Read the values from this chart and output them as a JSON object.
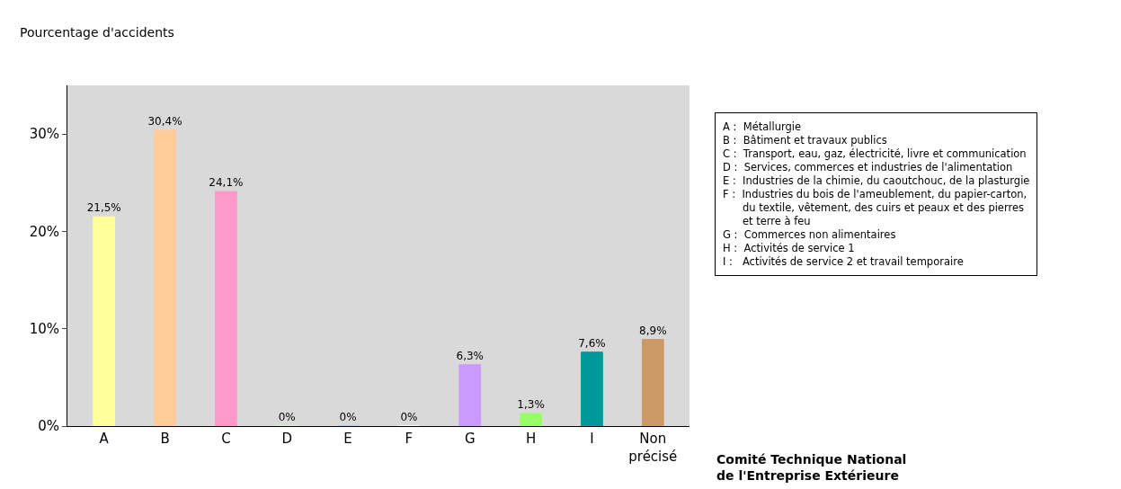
{
  "chart_data": {
    "type": "bar",
    "ylabel": "Pourcentage d'accidents",
    "categories": [
      "A",
      "B",
      "C",
      "D",
      "E",
      "F",
      "G",
      "H",
      "I",
      "Non précisé"
    ],
    "values": [
      21.5,
      30.4,
      24.1,
      0,
      0,
      0,
      6.3,
      1.3,
      7.6,
      8.9
    ],
    "value_labels": [
      "21,5%",
      "30,4%",
      "24,1%",
      "0%",
      "0%",
      "0%",
      "6,3%",
      "1,3%",
      "7,6%",
      "8,9%"
    ],
    "colors": [
      "#ffff99",
      "#ffcc99",
      "#ff99cc",
      "#ccffcc",
      "#99ccff",
      "#ffffff",
      "#cc99ff",
      "#99ff66",
      "#009999",
      "#cc9966"
    ],
    "ylim": [
      0,
      35
    ],
    "yticks": [
      {
        "value": 0,
        "label": "0%"
      },
      {
        "value": 10,
        "label": "10%"
      },
      {
        "value": 20,
        "label": "20%"
      },
      {
        "value": 30,
        "label": "30%"
      }
    ],
    "grid": false,
    "annotations": [
      "A :  Métallurgie\nB :  Bâtiment et travaux publics\nC :  Transport, eau, gaz, électricité, livre et communication\nD :  Services, commerces et industries de l'alimentation\nE :  Industries de la chimie, du caoutchouc, de la plasturgie\nF :  Industries du bois de l'ameublement, du papier-carton,\n      du textile, vêtement, des cuirs et peaux et des pierres\n      et terre à feu\nG :  Commerces non alimentaires\nH :  Activités de service 1\nI :   Activités de service 2 et travail temporaire",
      "Comité Technique National\nde l'Entreprise Extérieure"
    ]
  }
}
